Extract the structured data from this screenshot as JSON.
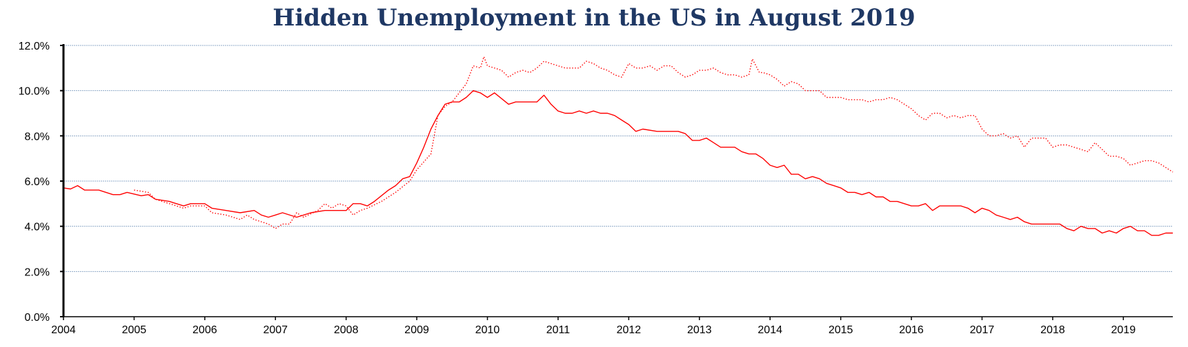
{
  "title": "Hidden Unemployment in the US in August 2019",
  "chart_data": {
    "type": "line",
    "title": "Hidden Unemployment in the US in August 2019",
    "xlabel": "",
    "ylabel": "",
    "x_range": [
      2004.0,
      2019.7
    ],
    "ylim": [
      0,
      12
    ],
    "y_ticks": [
      "0.0%",
      "2.0%",
      "4.0%",
      "6.0%",
      "8.0%",
      "10.0%",
      "12.0%"
    ],
    "x_ticks": [
      "2004",
      "2005",
      "2006",
      "2007",
      "2008",
      "2009",
      "2010",
      "2011",
      "2012",
      "2013",
      "2014",
      "2015",
      "2016",
      "2017",
      "2018",
      "2019"
    ],
    "grid": true,
    "legend": "none",
    "colors": {
      "series": "#ff0000",
      "grid": "#8ea9c8",
      "title": "#1f3864"
    },
    "series": [
      {
        "style": "solid",
        "x": [
          2004.0,
          2004.1,
          2004.2,
          2004.3,
          2004.5,
          2004.7,
          2004.8,
          2004.9,
          2005.1,
          2005.2,
          2005.3,
          2005.5,
          2005.7,
          2005.8,
          2006.0,
          2006.1,
          2006.3,
          2006.5,
          2006.7,
          2006.8,
          2006.9,
          2007.0,
          2007.1,
          2007.3,
          2007.4,
          2007.5,
          2007.7,
          2007.8,
          2008.0,
          2008.1,
          2008.2,
          2008.3,
          2008.4,
          2008.6,
          2008.7,
          2008.8,
          2008.9,
          2009.0,
          2009.1,
          2009.2,
          2009.3,
          2009.4,
          2009.5,
          2009.6,
          2009.7,
          2009.8,
          2009.9,
          2010.0,
          2010.1,
          2010.3,
          2010.4,
          2010.5,
          2010.6,
          2010.7,
          2010.8,
          2010.9,
          2011.0,
          2011.1,
          2011.2,
          2011.3,
          2011.4,
          2011.5,
          2011.6,
          2011.7,
          2011.8,
          2011.9,
          2012.0,
          2012.1,
          2012.2,
          2012.4,
          2012.5,
          2012.6,
          2012.7,
          2012.8,
          2012.9,
          2013.0,
          2013.1,
          2013.2,
          2013.3,
          2013.4,
          2013.5,
          2013.6,
          2013.7,
          2013.8,
          2013.9,
          2014.0,
          2014.1,
          2014.2,
          2014.3,
          2014.4,
          2014.5,
          2014.6,
          2014.7,
          2014.8,
          2014.9,
          2015.0,
          2015.1,
          2015.2,
          2015.3,
          2015.4,
          2015.5,
          2015.6,
          2015.7,
          2015.8,
          2015.9,
          2016.0,
          2016.1,
          2016.2,
          2016.3,
          2016.4,
          2016.5,
          2016.6,
          2016.7,
          2016.8,
          2016.9,
          2017.0,
          2017.1,
          2017.2,
          2017.3,
          2017.4,
          2017.5,
          2017.6,
          2017.7,
          2017.8,
          2017.9,
          2018.0,
          2018.1,
          2018.2,
          2018.3,
          2018.4,
          2018.5,
          2018.6,
          2018.7,
          2018.8,
          2018.9,
          2019.0,
          2019.1,
          2019.2,
          2019.3,
          2019.4,
          2019.5,
          2019.6,
          2019.7
        ],
        "y": [
          5.7,
          5.65,
          5.8,
          5.6,
          5.6,
          5.4,
          5.4,
          5.5,
          5.35,
          5.4,
          5.2,
          5.1,
          4.9,
          5.0,
          5.0,
          4.8,
          4.7,
          4.6,
          4.7,
          4.5,
          4.4,
          4.5,
          4.6,
          4.4,
          4.5,
          4.6,
          4.7,
          4.7,
          4.7,
          5.0,
          5.0,
          4.9,
          5.1,
          5.6,
          5.8,
          6.1,
          6.2,
          6.8,
          7.5,
          8.3,
          8.9,
          9.4,
          9.5,
          9.5,
          9.7,
          10.0,
          9.9,
          9.7,
          9.9,
          9.4,
          9.5,
          9.5,
          9.5,
          9.5,
          9.8,
          9.4,
          9.1,
          9.0,
          9.0,
          9.1,
          9.0,
          9.1,
          9.0,
          9.0,
          8.9,
          8.7,
          8.5,
          8.2,
          8.3,
          8.2,
          8.2,
          8.2,
          8.2,
          8.1,
          7.8,
          7.8,
          7.9,
          7.7,
          7.5,
          7.5,
          7.5,
          7.3,
          7.2,
          7.2,
          7.0,
          6.7,
          6.6,
          6.7,
          6.3,
          6.3,
          6.1,
          6.2,
          6.1,
          5.9,
          5.8,
          5.7,
          5.5,
          5.5,
          5.4,
          5.5,
          5.3,
          5.3,
          5.1,
          5.1,
          5.0,
          4.9,
          4.9,
          5.0,
          4.7,
          4.9,
          4.9,
          4.9,
          4.9,
          4.8,
          4.6,
          4.8,
          4.7,
          4.5,
          4.4,
          4.3,
          4.4,
          4.2,
          4.1,
          4.1,
          4.1,
          4.1,
          4.1,
          3.9,
          3.8,
          4.0,
          3.9,
          3.9,
          3.7,
          3.8,
          3.7,
          3.9,
          4.0,
          3.8,
          3.8,
          3.6,
          3.6,
          3.7,
          3.7
        ]
      },
      {
        "style": "dotted",
        "x": [
          2005.0,
          2005.2,
          2005.3,
          2005.5,
          2005.7,
          2005.8,
          2006.0,
          2006.1,
          2006.3,
          2006.5,
          2006.6,
          2006.7,
          2006.9,
          2007.0,
          2007.1,
          2007.2,
          2007.3,
          2007.4,
          2007.6,
          2007.7,
          2007.8,
          2007.9,
          2008.0,
          2008.1,
          2008.2,
          2008.3,
          2008.5,
          2008.7,
          2008.9,
          2009.0,
          2009.2,
          2009.3,
          2009.4,
          2009.5,
          2009.6,
          2009.7,
          2009.8,
          2009.9,
          2009.95,
          2010.0,
          2010.1,
          2010.2,
          2010.3,
          2010.4,
          2010.5,
          2010.6,
          2010.7,
          2010.8,
          2010.9,
          2011.0,
          2011.1,
          2011.2,
          2011.3,
          2011.4,
          2011.5,
          2011.6,
          2011.7,
          2011.8,
          2011.9,
          2012.0,
          2012.1,
          2012.2,
          2012.3,
          2012.4,
          2012.5,
          2012.6,
          2012.7,
          2012.8,
          2012.9,
          2013.0,
          2013.1,
          2013.2,
          2013.3,
          2013.4,
          2013.5,
          2013.6,
          2013.7,
          2013.75,
          2013.85,
          2013.9,
          2014.0,
          2014.1,
          2014.2,
          2014.3,
          2014.4,
          2014.5,
          2014.6,
          2014.7,
          2014.8,
          2014.9,
          2015.0,
          2015.1,
          2015.2,
          2015.3,
          2015.4,
          2015.5,
          2015.6,
          2015.7,
          2015.8,
          2015.9,
          2016.0,
          2016.1,
          2016.2,
          2016.3,
          2016.4,
          2016.5,
          2016.6,
          2016.7,
          2016.8,
          2016.9,
          2017.0,
          2017.1,
          2017.2,
          2017.3,
          2017.4,
          2017.5,
          2017.6,
          2017.7,
          2017.8,
          2017.9,
          2018.0,
          2018.1,
          2018.2,
          2018.3,
          2018.4,
          2018.5,
          2018.6,
          2018.7,
          2018.8,
          2018.9,
          2019.0,
          2019.1,
          2019.2,
          2019.3,
          2019.4,
          2019.5,
          2019.6,
          2019.7
        ],
        "y": [
          5.6,
          5.5,
          5.2,
          5.0,
          4.8,
          4.9,
          4.9,
          4.6,
          4.5,
          4.3,
          4.5,
          4.3,
          4.1,
          3.9,
          4.1,
          4.1,
          4.6,
          4.4,
          4.7,
          5.0,
          4.8,
          5.0,
          4.9,
          4.5,
          4.7,
          4.8,
          5.1,
          5.5,
          6.0,
          6.5,
          7.2,
          8.9,
          9.3,
          9.5,
          9.9,
          10.3,
          11.1,
          11.0,
          11.5,
          11.1,
          11.0,
          10.9,
          10.6,
          10.8,
          10.9,
          10.8,
          11.0,
          11.3,
          11.2,
          11.1,
          11.0,
          11.0,
          11.0,
          11.3,
          11.2,
          11.0,
          10.9,
          10.7,
          10.6,
          11.2,
          11.0,
          11.0,
          11.1,
          10.9,
          11.1,
          11.1,
          10.8,
          10.6,
          10.7,
          10.9,
          10.9,
          11.0,
          10.8,
          10.7,
          10.7,
          10.6,
          10.7,
          11.4,
          10.8,
          10.8,
          10.7,
          10.5,
          10.2,
          10.4,
          10.3,
          10.0,
          10.0,
          10.0,
          9.7,
          9.7,
          9.7,
          9.6,
          9.6,
          9.6,
          9.5,
          9.6,
          9.6,
          9.7,
          9.6,
          9.4,
          9.2,
          8.9,
          8.7,
          9.0,
          9.0,
          8.8,
          8.9,
          8.8,
          8.9,
          8.9,
          8.3,
          8.0,
          8.0,
          8.1,
          7.9,
          8.0,
          7.5,
          7.9,
          7.9,
          7.9,
          7.5,
          7.6,
          7.6,
          7.5,
          7.4,
          7.3,
          7.7,
          7.4,
          7.1,
          7.1,
          7.0,
          6.7,
          6.8,
          6.9,
          6.9,
          6.8,
          6.6,
          6.4
        ]
      }
    ]
  }
}
